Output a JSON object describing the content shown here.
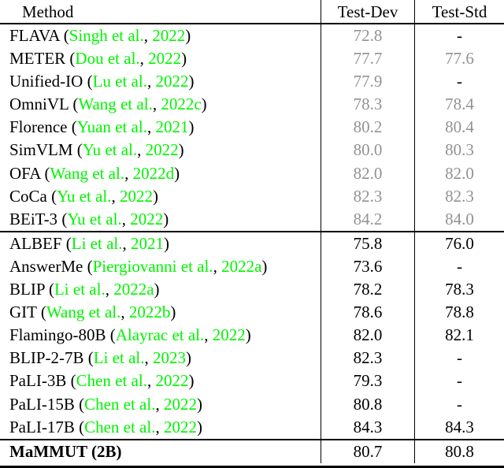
{
  "table": {
    "columns": [
      "Method",
      "Test-Dev",
      "Test-Std"
    ],
    "colors": {
      "citation_green": "#00f400",
      "muted_gray": "#929292",
      "text_black": "#000000"
    },
    "citation_format": {
      "open": "(",
      "separator": ",",
      "close": ")"
    },
    "sections": [
      {
        "name": "section-grayed-models",
        "rows": [
          {
            "name": "FLAVA",
            "authors": "Singh et al.",
            "year": "2022",
            "dev": {
              "text": "72.8",
              "muted": true
            },
            "std": {
              "text": "-",
              "muted": false
            }
          },
          {
            "name": "METER",
            "authors": "Dou et al.",
            "year": "2022",
            "dev": {
              "text": "77.7",
              "muted": true
            },
            "std": {
              "text": "77.6",
              "muted": true
            }
          },
          {
            "name": "Unified-IO",
            "authors": "Lu et al.",
            "year": "2022",
            "dev": {
              "text": "77.9",
              "muted": true
            },
            "std": {
              "text": "-",
              "muted": false
            }
          },
          {
            "name": "OmniVL",
            "authors": "Wang et al.",
            "year": "2022c",
            "dev": {
              "text": "78.3",
              "muted": true
            },
            "std": {
              "text": "78.4",
              "muted": true
            }
          },
          {
            "name": "Florence",
            "authors": "Yuan et al.",
            "year": "2021",
            "dev": {
              "text": "80.2",
              "muted": true
            },
            "std": {
              "text": "80.4",
              "muted": true
            }
          },
          {
            "name": "SimVLM",
            "authors": "Yu et al.",
            "year": "2022",
            "dev": {
              "text": "80.0",
              "muted": true
            },
            "std": {
              "text": "80.3",
              "muted": true
            }
          },
          {
            "name": "OFA",
            "authors": "Wang et al.",
            "year": "2022d",
            "dev": {
              "text": "82.0",
              "muted": true
            },
            "std": {
              "text": "82.0",
              "muted": true
            }
          },
          {
            "name": "CoCa",
            "authors": "Yu et al.",
            "year": "2022",
            "dev": {
              "text": "82.3",
              "muted": true
            },
            "std": {
              "text": "82.3",
              "muted": true
            }
          },
          {
            "name": "BEiT-3",
            "authors": "Yu et al.",
            "year": "2022",
            "dev": {
              "text": "84.2",
              "muted": true
            },
            "std": {
              "text": "84.0",
              "muted": true
            }
          }
        ]
      },
      {
        "name": "section-comparable-models",
        "rows": [
          {
            "name": "ALBEF",
            "authors": "Li et al.",
            "year": "2021",
            "dev": {
              "text": "75.8",
              "muted": false
            },
            "std": {
              "text": "76.0",
              "muted": false
            }
          },
          {
            "name": "AnswerMe",
            "authors": "Piergiovanni et al.",
            "year": "2022a",
            "dev": {
              "text": "73.6",
              "muted": false
            },
            "std": {
              "text": "-",
              "muted": false
            }
          },
          {
            "name": "BLIP",
            "authors": "Li et al.",
            "year": "2022a",
            "dev": {
              "text": "78.2",
              "muted": false
            },
            "std": {
              "text": "78.3",
              "muted": false
            }
          },
          {
            "name": "GIT",
            "authors": "Wang et al.",
            "year": "2022b",
            "dev": {
              "text": "78.6",
              "muted": false
            },
            "std": {
              "text": "78.8",
              "muted": false
            }
          },
          {
            "name": "Flamingo-80B",
            "authors": "Alayrac et al.",
            "year": "2022",
            "dev": {
              "text": "82.0",
              "muted": false
            },
            "std": {
              "text": "82.1",
              "muted": false
            }
          },
          {
            "name": "BLIP-2-7B",
            "authors": "Li et al.",
            "year": "2023",
            "dev": {
              "text": "82.3",
              "muted": false
            },
            "std": {
              "text": "-",
              "muted": false
            }
          },
          {
            "name": "PaLI-3B",
            "authors": "Chen et al.",
            "year": "2022",
            "dev": {
              "text": "79.3",
              "muted": false
            },
            "std": {
              "text": "-",
              "muted": false
            }
          },
          {
            "name": "PaLI-15B",
            "authors": "Chen et al.",
            "year": "2022",
            "dev": {
              "text": "80.8",
              "muted": false
            },
            "std": {
              "text": "-",
              "muted": false
            }
          },
          {
            "name": "PaLI-17B",
            "authors": "Chen et al.",
            "year": "2022",
            "dev": {
              "text": "84.3",
              "muted": false
            },
            "std": {
              "text": "84.3",
              "muted": false
            }
          }
        ]
      },
      {
        "name": "section-ours",
        "rows": [
          {
            "name": "MaMMUT (2B)",
            "authors": null,
            "year": null,
            "bold": true,
            "dev": {
              "text": "80.7",
              "muted": false
            },
            "std": {
              "text": "80.8",
              "muted": false
            }
          }
        ]
      }
    ]
  }
}
